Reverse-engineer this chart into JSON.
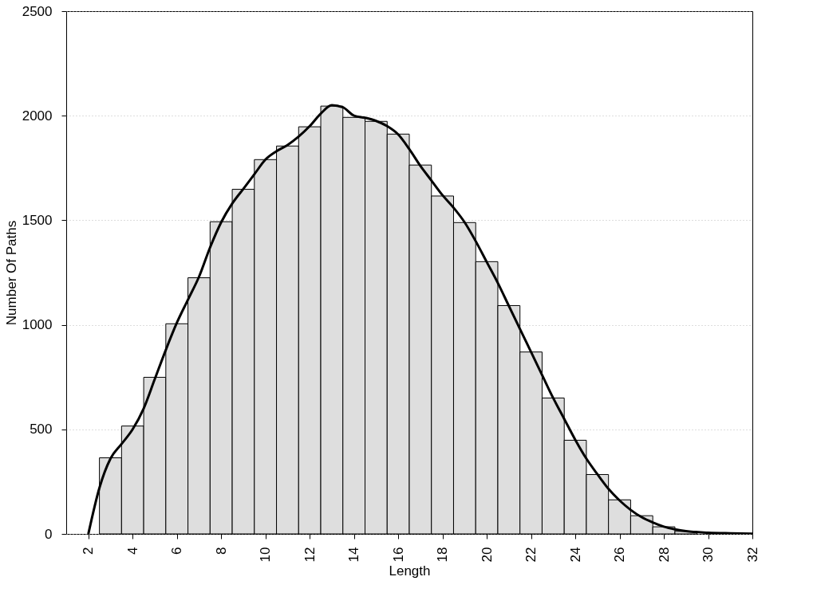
{
  "chart_data": {
    "type": "histogram",
    "xlabel": "Length",
    "ylabel": "Number Of Paths",
    "bins": [
      2.5,
      3.5,
      4.5,
      5.5,
      6.5,
      7.5,
      8.5,
      9.5,
      10.5,
      11.5,
      12.5,
      13.5,
      14.5,
      15.5,
      16.5,
      17.5,
      18.5,
      19.5,
      20.5,
      21.5,
      22.5,
      23.5,
      24.5,
      25.5,
      26.5,
      27.5,
      28.5,
      29.5
    ],
    "values": [
      364,
      516,
      749,
      1005,
      1225,
      1493,
      1648,
      1790,
      1855,
      1947,
      2046,
      1992,
      1973,
      1912,
      1764,
      1616,
      1489,
      1302,
      1092,
      870,
      650,
      448,
      284,
      163,
      87,
      34,
      12
    ],
    "color": "#dedede",
    "series": [
      {
        "type": "line",
        "color": "#000000",
        "x": [
          2,
          2.5,
          3,
          3.5,
          4,
          4.5,
          5,
          5.5,
          6,
          6.5,
          7,
          7.5,
          8,
          8.5,
          9,
          9.5,
          10,
          10.5,
          11,
          11.5,
          12,
          12.5,
          13,
          13.5,
          14,
          14.5,
          15,
          15.5,
          16,
          16.5,
          17,
          17.5,
          18,
          18.5,
          19,
          19.5,
          20,
          20.5,
          21,
          21.5,
          22,
          22.5,
          23,
          23.5,
          24,
          24.5,
          25,
          25.5,
          26,
          26.5,
          27,
          27.5,
          28,
          28.5,
          29,
          30,
          31,
          32
        ],
        "values": [
          0,
          220,
          360,
          430,
          500,
          600,
          740,
          880,
          1010,
          1120,
          1230,
          1370,
          1490,
          1580,
          1650,
          1720,
          1790,
          1830,
          1860,
          1900,
          1950,
          2010,
          2050,
          2040,
          2000,
          1990,
          1975,
          1950,
          1910,
          1840,
          1760,
          1690,
          1620,
          1560,
          1490,
          1400,
          1300,
          1200,
          1090,
          980,
          870,
          760,
          650,
          550,
          450,
          360,
          285,
          215,
          160,
          115,
          80,
          55,
          35,
          22,
          13,
          6,
          3,
          1
        ]
      }
    ],
    "xlim": [
      1,
      32
    ],
    "ylim": [
      0,
      2500
    ],
    "xticks": [
      2,
      4,
      6,
      8,
      10,
      12,
      14,
      16,
      18,
      20,
      22,
      24,
      26,
      28,
      30,
      32
    ],
    "yticks": [
      0,
      500,
      1000,
      1500,
      2000,
      2500
    ],
    "grid": "y",
    "line_style": "solid",
    "marker": "none"
  }
}
